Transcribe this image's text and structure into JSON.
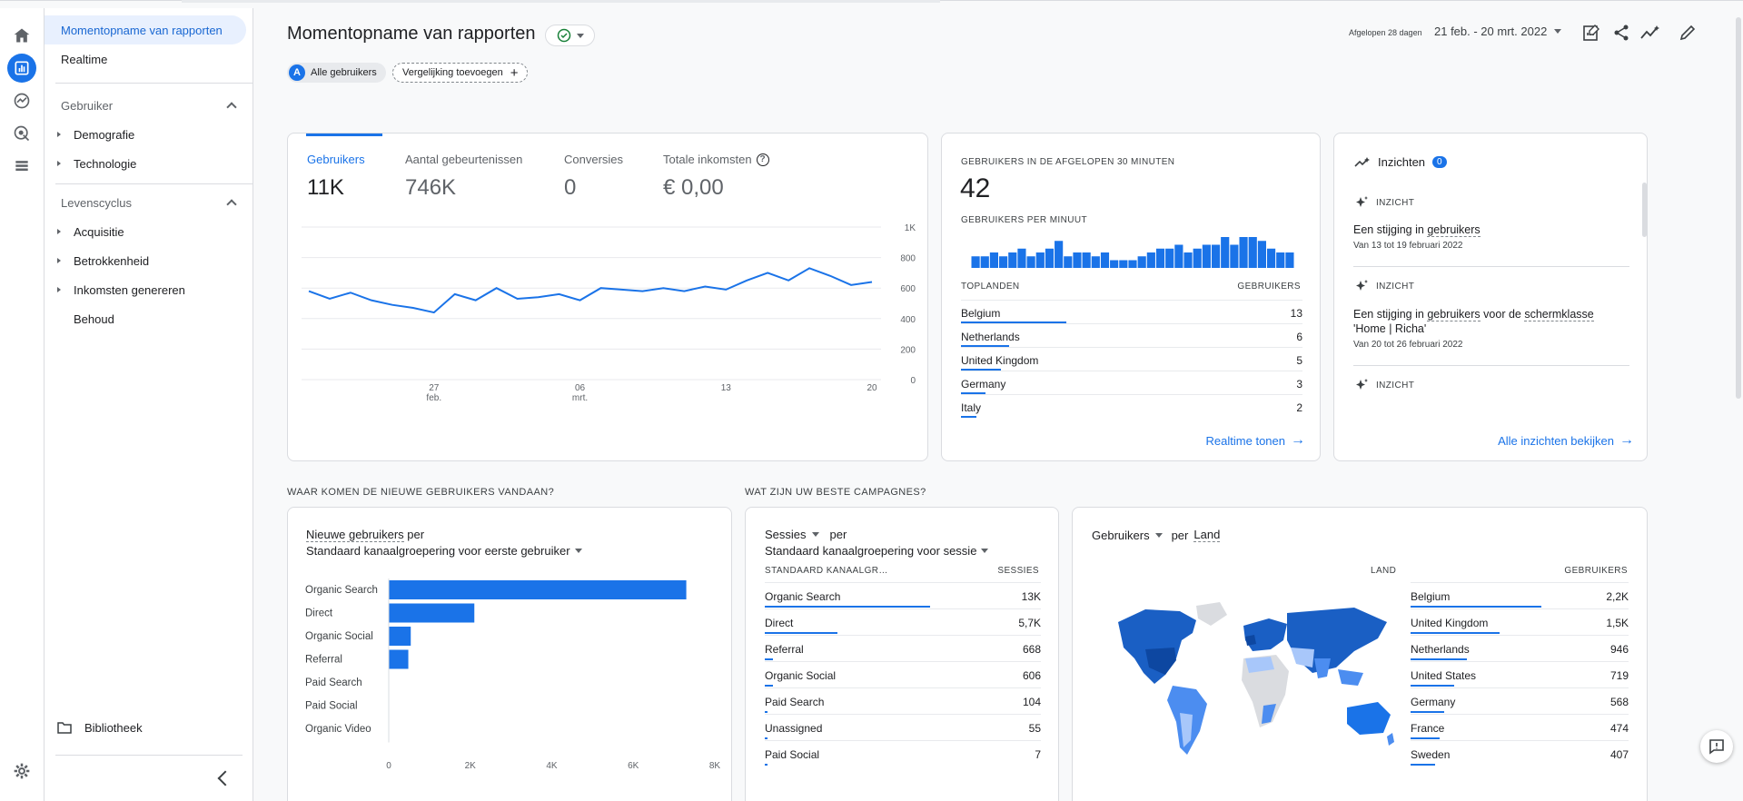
{
  "sidebar": {
    "items": [
      {
        "label": "Momentopname van rapporten"
      },
      {
        "label": "Realtime"
      }
    ],
    "sections": [
      {
        "label": "Gebruiker",
        "children": [
          "Demografie",
          "Technologie"
        ]
      },
      {
        "label": "Levenscyclus",
        "children": [
          "Acquisitie",
          "Betrokkenheid",
          "Inkomsten genereren",
          "Behoud"
        ]
      }
    ],
    "library": "Bibliotheek"
  },
  "header": {
    "title": "Momentopname van rapporten",
    "all_users_avatar": "A",
    "all_users": "Alle gebruikers",
    "add_comparison": "Vergelijking toevoegen",
    "date_label": "Afgelopen 28 dagen",
    "date_range": "21 feb. - 20 mrt. 2022"
  },
  "metrics": {
    "tabs": [
      {
        "label": "Gebruikers",
        "value": "11K"
      },
      {
        "label": "Aantal gebeurtenissen",
        "value": "746K"
      },
      {
        "label": "Conversies",
        "value": "0"
      },
      {
        "label": "Totale inkomsten",
        "value": "€ 0,00"
      }
    ]
  },
  "chart_data": [
    {
      "type": "line",
      "x": [
        "21 feb",
        "22 feb",
        "23 feb",
        "24 feb",
        "25 feb",
        "26 feb",
        "27 feb",
        "28 feb",
        "01 mrt",
        "02 mrt",
        "03 mrt",
        "04 mrt",
        "05 mrt",
        "06 mrt",
        "07 mrt",
        "08 mrt",
        "09 mrt",
        "10 mrt",
        "11 mrt",
        "12 mrt",
        "13 mrt",
        "14 mrt",
        "15 mrt",
        "16 mrt",
        "17 mrt",
        "18 mrt",
        "19 mrt",
        "20 mrt"
      ],
      "series": [
        {
          "values": [
            580,
            530,
            570,
            520,
            490,
            470,
            440,
            560,
            520,
            600,
            530,
            540,
            560,
            520,
            600,
            590,
            580,
            600,
            580,
            610,
            590,
            650,
            700,
            650,
            730,
            680,
            620,
            640
          ]
        }
      ],
      "ylim": [
        0,
        1000
      ],
      "yticks": [
        "1K",
        "800",
        "600",
        "400",
        "200",
        "0"
      ],
      "xticks": [
        {
          "day": "27",
          "month": "feb."
        },
        {
          "day": "06",
          "month": "mrt."
        },
        {
          "day": "13",
          "month": ""
        },
        {
          "day": "20",
          "month": ""
        }
      ]
    },
    {
      "type": "bar",
      "title": "GEBRUIKERS PER MINUUT",
      "values": [
        3,
        3,
        4,
        3,
        4,
        5,
        3,
        4,
        5,
        7,
        3,
        4,
        4,
        3,
        4,
        2,
        2,
        2,
        3,
        4,
        5,
        5,
        6,
        4,
        5,
        6,
        6,
        8,
        6,
        8,
        8,
        7,
        5,
        4,
        4
      ]
    },
    {
      "type": "bar",
      "orientation": "horizontal",
      "categories": [
        "Organic Search",
        "Direct",
        "Organic Social",
        "Referral",
        "Paid Search",
        "Paid Social",
        "Organic Video"
      ],
      "values": [
        7300,
        2100,
        540,
        480,
        8,
        5,
        1
      ],
      "xlim": [
        0,
        8000
      ],
      "xticks": [
        "0",
        "2K",
        "4K",
        "6K",
        "8K"
      ]
    }
  ],
  "realtime": {
    "title": "GEBRUIKERS IN DE AFGELOPEN 30 MINUTEN",
    "value": "42",
    "per_minute_label": "GEBRUIKERS PER MINUUT",
    "col_country": "TOPLANDEN",
    "col_users": "GEBRUIKERS",
    "rows": [
      {
        "country": "Belgium",
        "users": "13",
        "share": 1.0
      },
      {
        "country": "Netherlands",
        "users": "6",
        "share": 0.46
      },
      {
        "country": "United Kingdom",
        "users": "5",
        "share": 0.38
      },
      {
        "country": "Germany",
        "users": "3",
        "share": 0.23
      },
      {
        "country": "Italy",
        "users": "2",
        "share": 0.15
      }
    ],
    "link": "Realtime tonen"
  },
  "insights": {
    "title": "Inzichten",
    "badge": "0",
    "items": [
      {
        "tag": "INZICHT",
        "text_a": "Een stijging in ",
        "text_b": "gebruikers",
        "text_c": "",
        "text_d": "",
        "text_e": "",
        "sub": "Van 13 tot 19 februari 2022"
      },
      {
        "tag": "INZICHT",
        "text_a": "Een stijging in ",
        "text_b": "gebruikers",
        "text_c": " voor de ",
        "text_d": "schermklasse",
        "text_e": " 'Home | Richa'",
        "sub": "Van 20 tot 26 februari 2022"
      },
      {
        "tag": "INZICHT"
      }
    ],
    "link": "Alle inzichten bekijken"
  },
  "sections": {
    "new_users_q": "WAAR KOMEN DE NIEUWE GEBRUIKERS VANDAAN?",
    "campaigns_q": "WAT ZIJN UW BESTE CAMPAGNES?"
  },
  "new_users": {
    "metric": "Nieuwe gebruikers",
    "per": " per",
    "dimension": "Standaard kanaalgroepering voor eerste gebruiker"
  },
  "sessions": {
    "metric": "Sessies",
    "per": "per",
    "dimension": "Standaard kanaalgroepering voor sessie",
    "col_a": "STANDAARD KANAALGR…",
    "col_b": "SESSIES",
    "rows": [
      {
        "name": "Organic Search",
        "value": "13K",
        "share": 1.0
      },
      {
        "name": "Direct",
        "value": "5,7K",
        "share": 0.44
      },
      {
        "name": "Referral",
        "value": "668",
        "share": 0.05
      },
      {
        "name": "Organic Social",
        "value": "606",
        "share": 0.05
      },
      {
        "name": "Paid Search",
        "value": "104",
        "share": 0.01
      },
      {
        "name": "Unassigned",
        "value": "55",
        "share": 0.005
      },
      {
        "name": "Paid Social",
        "value": "7",
        "share": 0.002
      }
    ]
  },
  "geo": {
    "metric": "Gebruikers",
    "per": "per",
    "dimension": "Land",
    "col_a": "LAND",
    "col_b": "GEBRUIKERS",
    "rows": [
      {
        "name": "Belgium",
        "value": "2,2K",
        "share": 1.0
      },
      {
        "name": "United Kingdom",
        "value": "1,5K",
        "share": 0.68
      },
      {
        "name": "Netherlands",
        "value": "946",
        "share": 0.43
      },
      {
        "name": "United States",
        "value": "719",
        "share": 0.33
      },
      {
        "name": "Germany",
        "value": "568",
        "share": 0.26
      },
      {
        "name": "France",
        "value": "474",
        "share": 0.22
      },
      {
        "name": "Sweden",
        "value": "407",
        "share": 0.19
      }
    ]
  },
  "colors": {
    "accent": "#1a73e8",
    "bar": "#1a73e8",
    "map_dark": "#1a5fc4",
    "map_light": "#a8c7fa",
    "map_none": "#dadce0"
  }
}
